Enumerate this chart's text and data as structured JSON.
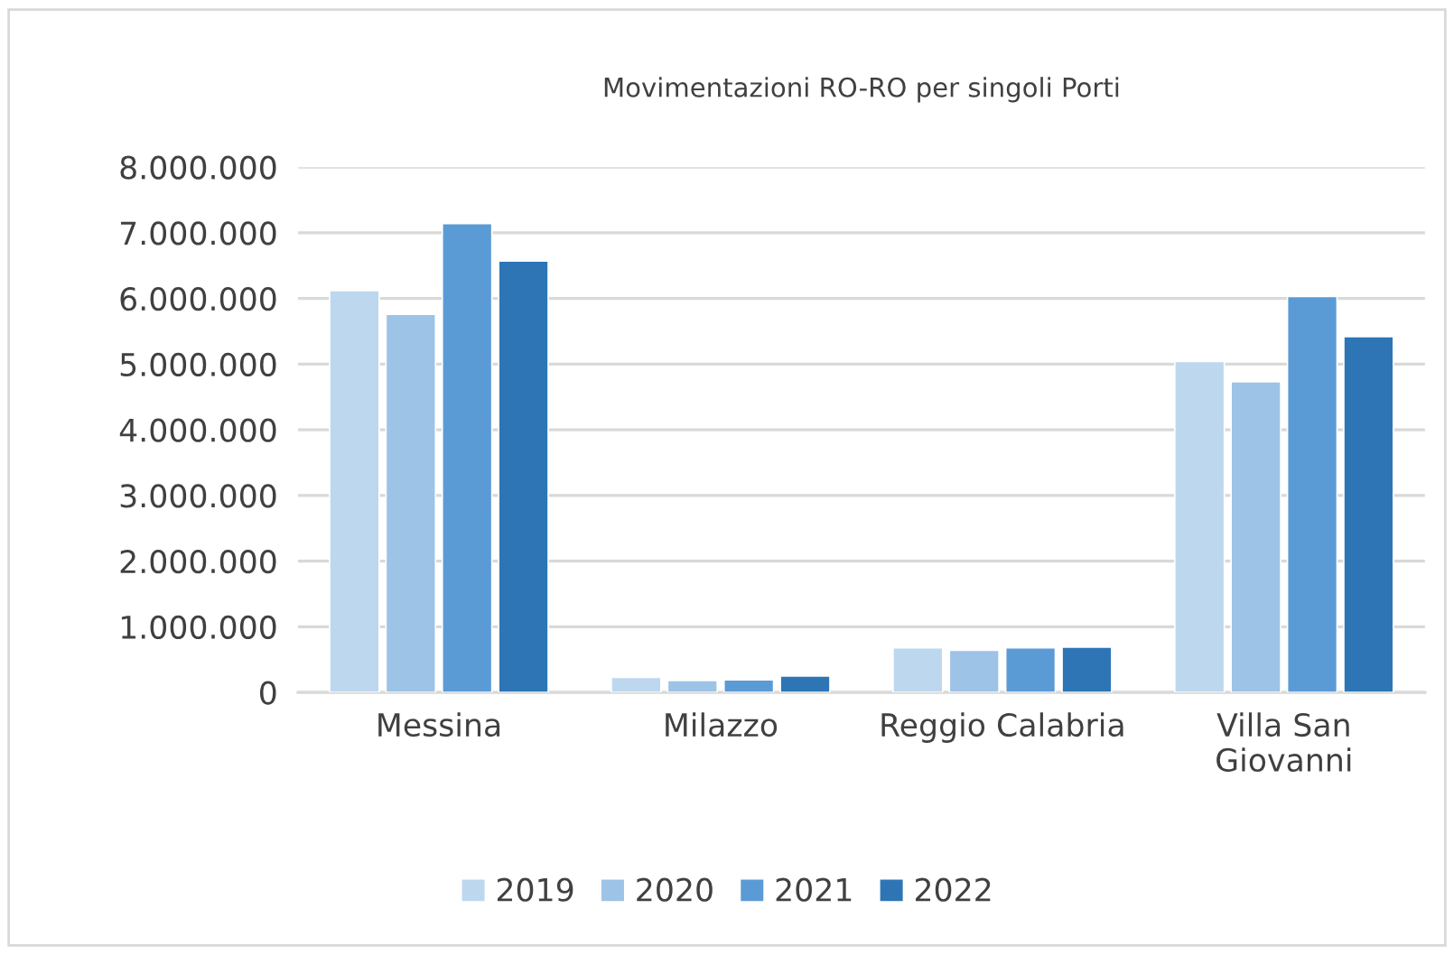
{
  "chart_data": {
    "type": "bar",
    "title": "Movimentazioni RO-RO per singoli Porti",
    "categories": [
      "Messina",
      "Milazzo",
      "Reggio Calabria",
      "Villa San Giovanni"
    ],
    "series": [
      {
        "name": "2019",
        "color": "#bdd7ee",
        "values": [
          6120000,
          230000,
          680000,
          5040000
        ]
      },
      {
        "name": "2020",
        "color": "#9dc3e6",
        "values": [
          5760000,
          180000,
          640000,
          4730000
        ]
      },
      {
        "name": "2021",
        "color": "#5b9bd5",
        "values": [
          7140000,
          190000,
          680000,
          6030000
        ]
      },
      {
        "name": "2022",
        "color": "#2e75b6",
        "values": [
          6570000,
          250000,
          690000,
          5420000
        ]
      }
    ],
    "ylim": [
      0,
      8000000
    ],
    "yticks": [
      0,
      {
        "value": 1000000,
        "label": "1.000.000"
      },
      {
        "value": 2000000,
        "label": "2.000.000"
      },
      {
        "value": 3000000,
        "label": "3.000.000"
      },
      {
        "value": 4000000,
        "label": "4.000.000"
      },
      {
        "value": 5000000,
        "label": "5.000.000"
      },
      {
        "value": 6000000,
        "label": "6.000.000"
      },
      {
        "value": 7000000,
        "label": "7.000.000"
      },
      {
        "value": 8000000,
        "label": "8.000.000"
      }
    ],
    "grid": "y",
    "legend": "bottom"
  }
}
